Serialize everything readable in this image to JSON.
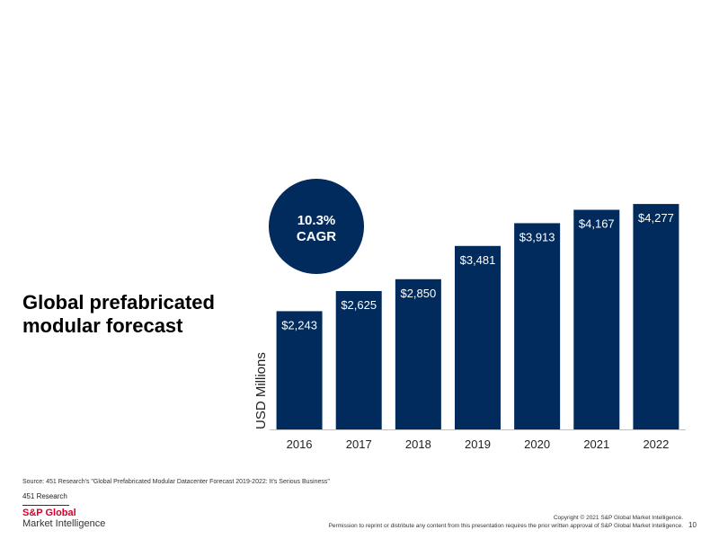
{
  "slide": {
    "title_line1": "Global prefabricated",
    "title_line2": "modular forecast",
    "cagr_value": "10.3%",
    "cagr_label": "CAGR",
    "source": "Source: 451 Research's \"Global Prefabricated Modular Datacenter Forecast 2019-2022: It's Serious Business\"",
    "research_label": "451 Research",
    "logo_line1": "S&P Global",
    "logo_line2": "Market Intelligence",
    "copyright": "Copyright © 2021 S&P Global Market Intelligence.",
    "permission": "Permission to reprint or distribute any content from this presentation requires the prior written approval of S&P Global Market Intelligence.",
    "page_number": "10"
  },
  "colors": {
    "bar": "#002b5c",
    "brand_red": "#d6002a"
  },
  "chart_data": {
    "type": "bar",
    "categories": [
      "2016",
      "2017",
      "2018",
      "2019",
      "2020",
      "2021",
      "2022"
    ],
    "values": [
      2243,
      2625,
      2850,
      3481,
      3913,
      4167,
      4277
    ],
    "data_labels": [
      "$2,243",
      "$2,625",
      "$2,850",
      "$3,481",
      "$3,913",
      "$4,167",
      "$4,277"
    ],
    "title": "",
    "xlabel": "",
    "ylabel": "USD Millions",
    "ylim": [
      0,
      4500
    ],
    "grid": false,
    "legend": "none"
  }
}
